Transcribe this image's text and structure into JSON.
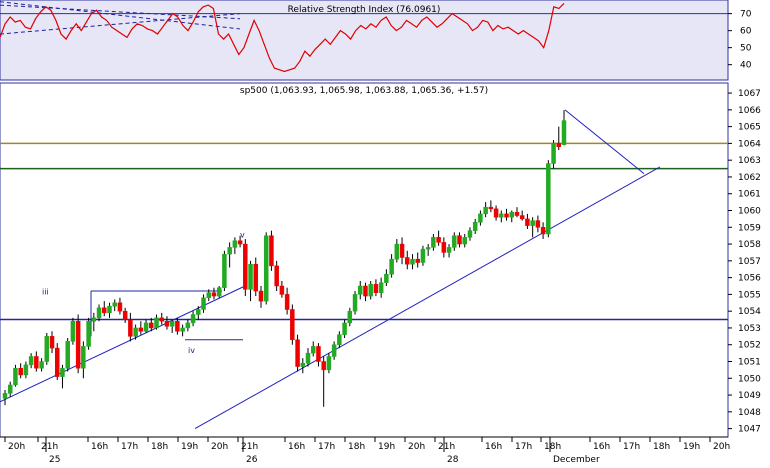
{
  "chart_data": [
    {
      "type": "line",
      "title": "Relative Strength Index (76.0961)",
      "ylim": [
        31,
        78
      ],
      "yticks": [
        40,
        50,
        60,
        70
      ],
      "reference_lines": [
        70
      ],
      "series": [
        {
          "color": "#e00000",
          "values": [
            56,
            64,
            68,
            65,
            66,
            62,
            61,
            67,
            71,
            74,
            72,
            66,
            58,
            55,
            60,
            64,
            60,
            65,
            70,
            72,
            68,
            66,
            62,
            60,
            58,
            56,
            61,
            64,
            63,
            61,
            60,
            58,
            62,
            66,
            70,
            68,
            63,
            60,
            65,
            71,
            74,
            75,
            73,
            58,
            55,
            58,
            52,
            46,
            50,
            58,
            66,
            60,
            52,
            44,
            38,
            37,
            36,
            37,
            38,
            42,
            48,
            45,
            49,
            52,
            55,
            52,
            56,
            60,
            58,
            55,
            60,
            63,
            61,
            64,
            62,
            66,
            68,
            63,
            60,
            62,
            66,
            64,
            62,
            66,
            68,
            65,
            62,
            64,
            67,
            70,
            68,
            66,
            64,
            60,
            62,
            66,
            65,
            60,
            63,
            61,
            62,
            60,
            58,
            60,
            58,
            56,
            54,
            50,
            60,
            74,
            73,
            76
          ]
        }
      ],
      "trendlines": [
        {
          "x0": 0,
          "y0": 77,
          "x1": 240,
          "y1": 61
        },
        {
          "x0": 0,
          "y0": 58,
          "x1": 240,
          "y1": 70
        },
        {
          "x0": 0,
          "y0": 75,
          "x1": 240,
          "y1": 67
        }
      ]
    },
    {
      "type": "candlestick",
      "title": "sp500 (1,063.93, 1,065.98, 1,063.88, 1,065.36, +1.57)",
      "ylim": [
        1046.5,
        1067.6
      ],
      "yticks": [
        1047,
        1048,
        1049,
        1050,
        1051,
        1052,
        1053,
        1054,
        1055,
        1056,
        1057,
        1058,
        1059,
        1060,
        1061,
        1062,
        1063,
        1064,
        1065,
        1066,
        1067
      ],
      "x_ticks": [
        "20h",
        "21h",
        "16h",
        "17h",
        "18h",
        "19h",
        "20h",
        "21h",
        "16h",
        "17h",
        "18h",
        "19h",
        "20h",
        "21h",
        "16h",
        "17h",
        "18h",
        "16h",
        "17h",
        "18h",
        "19h",
        "20h"
      ],
      "date_labels": [
        "25",
        "26",
        "28",
        "December"
      ],
      "annotations": [
        "iii",
        "iv",
        "v"
      ],
      "horizontal_lines": [
        {
          "value": 1064.0,
          "color": "#a08a20"
        },
        {
          "value": 1062.5,
          "color": "#1f5f1f"
        },
        {
          "value": 1053.5,
          "color": "#2525a0"
        }
      ],
      "trendlines": [
        {
          "x0": 0,
          "y0": 1048.6,
          "x1": 245,
          "y1": 1055.5
        },
        {
          "x0": 195,
          "y0": 1047.0,
          "x1": 660,
          "y1": 1062.6
        },
        {
          "x0": 565,
          "y0": 1066.0,
          "x1": 644,
          "y1": 1062.2
        }
      ],
      "boxes": [
        {
          "label": "iii",
          "x0": 91,
          "x1": 222,
          "y_top": 1055.2,
          "y_bottom": 1052.5
        }
      ],
      "candles": [
        [
          1048.8,
          1049.3,
          1048.4,
          1049.1
        ],
        [
          1049.1,
          1049.8,
          1048.9,
          1049.6
        ],
        [
          1049.6,
          1050.8,
          1049.5,
          1050.6
        ],
        [
          1050.6,
          1050.9,
          1050.0,
          1050.2
        ],
        [
          1050.2,
          1051.0,
          1050.0,
          1050.8
        ],
        [
          1050.8,
          1051.5,
          1050.6,
          1051.3
        ],
        [
          1051.3,
          1051.6,
          1050.4,
          1050.6
        ],
        [
          1050.6,
          1051.2,
          1050.4,
          1051.0
        ],
        [
          1051.0,
          1052.7,
          1050.8,
          1052.5
        ],
        [
          1052.5,
          1052.8,
          1051.5,
          1051.8
        ],
        [
          1051.8,
          1052.1,
          1049.9,
          1050.1
        ],
        [
          1050.1,
          1050.8,
          1049.4,
          1050.6
        ],
        [
          1050.6,
          1052.4,
          1050.4,
          1052.2
        ],
        [
          1052.2,
          1053.6,
          1052.0,
          1053.4
        ],
        [
          1053.4,
          1053.8,
          1050.3,
          1050.6
        ],
        [
          1050.6,
          1052.2,
          1050.0,
          1051.9
        ],
        [
          1051.9,
          1053.6,
          1051.7,
          1053.4
        ],
        [
          1053.4,
          1053.9,
          1052.8,
          1053.6
        ],
        [
          1053.6,
          1054.4,
          1053.4,
          1054.2
        ],
        [
          1054.2,
          1054.6,
          1053.7,
          1053.9
        ],
        [
          1053.9,
          1054.5,
          1053.6,
          1054.3
        ],
        [
          1054.3,
          1054.7,
          1054.0,
          1054.5
        ],
        [
          1054.5,
          1054.8,
          1053.8,
          1054.0
        ],
        [
          1054.0,
          1054.2,
          1053.3,
          1053.5
        ],
        [
          1053.5,
          1053.9,
          1052.2,
          1052.5
        ],
        [
          1052.5,
          1053.2,
          1052.3,
          1053.0
        ],
        [
          1053.0,
          1053.4,
          1052.6,
          1052.8
        ],
        [
          1052.8,
          1053.5,
          1052.7,
          1053.3
        ],
        [
          1053.3,
          1053.6,
          1052.8,
          1053.0
        ],
        [
          1053.0,
          1053.8,
          1052.9,
          1053.6
        ],
        [
          1053.6,
          1053.9,
          1053.2,
          1053.4
        ],
        [
          1053.4,
          1053.7,
          1052.9,
          1053.1
        ],
        [
          1053.1,
          1053.5,
          1052.7,
          1053.4
        ],
        [
          1053.4,
          1053.6,
          1052.6,
          1052.8
        ],
        [
          1052.8,
          1053.2,
          1052.5,
          1053.0
        ],
        [
          1053.0,
          1053.5,
          1052.8,
          1053.3
        ],
        [
          1053.3,
          1054.0,
          1053.1,
          1053.8
        ],
        [
          1053.8,
          1054.3,
          1053.5,
          1054.1
        ],
        [
          1054.1,
          1055.0,
          1053.9,
          1054.8
        ],
        [
          1054.8,
          1055.3,
          1054.6,
          1055.1
        ],
        [
          1055.1,
          1055.4,
          1054.7,
          1054.9
        ],
        [
          1054.9,
          1055.5,
          1054.8,
          1055.4
        ],
        [
          1055.4,
          1057.6,
          1055.2,
          1057.4
        ],
        [
          1057.4,
          1058.1,
          1056.6,
          1057.8
        ],
        [
          1057.8,
          1058.4,
          1057.4,
          1058.2
        ],
        [
          1058.2,
          1058.5,
          1057.8,
          1058.0
        ],
        [
          1058.0,
          1058.3,
          1054.9,
          1055.3
        ],
        [
          1055.3,
          1057.0,
          1054.6,
          1056.8
        ],
        [
          1056.8,
          1057.2,
          1054.9,
          1055.2
        ],
        [
          1055.2,
          1055.5,
          1054.2,
          1054.6
        ],
        [
          1054.6,
          1058.7,
          1054.4,
          1058.5
        ],
        [
          1058.5,
          1058.8,
          1056.4,
          1056.7
        ],
        [
          1056.7,
          1057.0,
          1055.2,
          1055.5
        ],
        [
          1055.5,
          1055.8,
          1054.8,
          1055.0
        ],
        [
          1055.0,
          1055.4,
          1053.8,
          1054.1
        ],
        [
          1054.1,
          1054.4,
          1052.0,
          1052.3
        ],
        [
          1052.3,
          1052.6,
          1050.4,
          1050.7
        ],
        [
          1050.7,
          1051.2,
          1050.3,
          1050.9
        ],
        [
          1050.9,
          1051.8,
          1050.7,
          1051.5
        ],
        [
          1051.5,
          1052.2,
          1051.3,
          1051.9
        ],
        [
          1051.9,
          1052.1,
          1050.7,
          1051.0
        ],
        [
          1051.0,
          1051.3,
          1048.3,
          1050.5
        ],
        [
          1050.5,
          1051.5,
          1050.3,
          1051.3
        ],
        [
          1051.3,
          1052.2,
          1051.1,
          1052.0
        ],
        [
          1052.0,
          1052.8,
          1051.8,
          1052.6
        ],
        [
          1052.6,
          1053.5,
          1052.4,
          1053.3
        ],
        [
          1053.3,
          1054.2,
          1053.1,
          1054.0
        ],
        [
          1054.0,
          1055.2,
          1053.8,
          1055.0
        ],
        [
          1055.0,
          1055.8,
          1054.7,
          1055.5
        ],
        [
          1055.5,
          1055.7,
          1054.6,
          1054.9
        ],
        [
          1054.9,
          1055.8,
          1054.7,
          1055.6
        ],
        [
          1055.6,
          1055.9,
          1054.9,
          1055.1
        ],
        [
          1055.1,
          1056.0,
          1054.8,
          1055.7
        ],
        [
          1055.7,
          1056.5,
          1055.5,
          1056.2
        ],
        [
          1056.2,
          1057.4,
          1056.0,
          1057.1
        ],
        [
          1057.1,
          1058.3,
          1056.9,
          1058.0
        ],
        [
          1058.0,
          1058.4,
          1056.8,
          1057.2
        ],
        [
          1057.2,
          1057.6,
          1056.5,
          1056.8
        ],
        [
          1056.8,
          1057.4,
          1056.5,
          1057.1
        ],
        [
          1057.1,
          1057.5,
          1056.6,
          1056.9
        ],
        [
          1056.9,
          1057.9,
          1056.7,
          1057.7
        ],
        [
          1057.7,
          1058.0,
          1057.3,
          1057.8
        ],
        [
          1057.8,
          1058.6,
          1057.6,
          1058.4
        ],
        [
          1058.4,
          1058.8,
          1057.9,
          1058.1
        ],
        [
          1058.1,
          1058.4,
          1057.2,
          1057.5
        ],
        [
          1057.5,
          1058.0,
          1057.2,
          1057.8
        ],
        [
          1057.8,
          1058.7,
          1057.6,
          1058.5
        ],
        [
          1058.5,
          1058.7,
          1057.8,
          1058.0
        ],
        [
          1058.0,
          1058.6,
          1057.8,
          1058.4
        ],
        [
          1058.4,
          1059.0,
          1058.2,
          1058.8
        ],
        [
          1058.8,
          1059.5,
          1058.6,
          1059.3
        ],
        [
          1059.3,
          1060.0,
          1059.1,
          1059.8
        ],
        [
          1059.8,
          1060.5,
          1059.6,
          1060.2
        ],
        [
          1060.2,
          1060.6,
          1059.9,
          1060.1
        ],
        [
          1060.1,
          1060.3,
          1059.4,
          1059.6
        ],
        [
          1059.6,
          1060.0,
          1059.3,
          1059.8
        ],
        [
          1059.8,
          1060.1,
          1059.4,
          1059.6
        ],
        [
          1059.6,
          1060.0,
          1059.3,
          1059.9
        ],
        [
          1059.9,
          1060.2,
          1059.6,
          1059.7
        ],
        [
          1059.7,
          1060.0,
          1059.4,
          1059.5
        ],
        [
          1059.5,
          1059.8,
          1058.9,
          1059.1
        ],
        [
          1059.1,
          1059.6,
          1058.4,
          1059.4
        ],
        [
          1059.4,
          1059.7,
          1058.7,
          1059.0
        ],
        [
          1059.0,
          1059.3,
          1058.3,
          1058.6
        ],
        [
          1058.6,
          1063.0,
          1058.4,
          1062.8
        ],
        [
          1062.8,
          1064.2,
          1062.5,
          1064.0
        ],
        [
          1064.0,
          1065.0,
          1063.6,
          1063.8
        ],
        [
          1063.93,
          1065.98,
          1063.88,
          1065.36
        ]
      ]
    }
  ]
}
